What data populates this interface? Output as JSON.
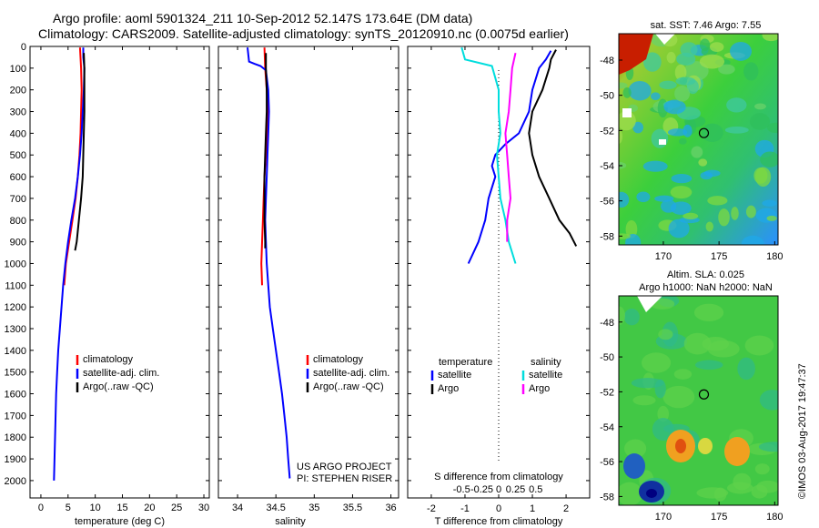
{
  "title": {
    "line1": "Argo profile: aoml 5901324_211 10-Sep-2012 52.147S 173.64E (DM data)",
    "line2": "Climatology: CARS2009. Satellite-adjusted climatology: synTS_20120910.nc (0.0075d earlier)"
  },
  "credit": "US ARGO PROJECT\nPI: STEPHEN RISER",
  "footer_stamp": "©IMOS 03-Aug-2017 19:47:37",
  "colors": {
    "climatology": "#ff0000",
    "satellite": "#0000ff",
    "argo": "#000000",
    "sal_satellite": "#00dddd",
    "sal_argo": "#ff00ff"
  },
  "chart_data": [
    {
      "id": "temperature-profile",
      "type": "line",
      "xlabel": "temperature (deg C)",
      "xlim": [
        -2,
        31
      ],
      "xticks": [
        0,
        5,
        10,
        15,
        20,
        25,
        30
      ],
      "ylim": [
        2080,
        0
      ],
      "yticks": [
        0,
        100,
        200,
        300,
        400,
        500,
        600,
        700,
        800,
        900,
        1000,
        1100,
        1200,
        1300,
        1400,
        1500,
        1600,
        1700,
        1800,
        1900,
        2000
      ],
      "legend": [
        "climatology",
        "satellite-adj. clim.",
        "Argo(..raw -QC)"
      ],
      "series": [
        {
          "name": "climatology",
          "color": "#ff0000",
          "points": [
            [
              7.2,
              5
            ],
            [
              7.4,
              100
            ],
            [
              7.5,
              200
            ],
            [
              7.4,
              300
            ],
            [
              7.3,
              400
            ],
            [
              7.1,
              500
            ],
            [
              6.8,
              600
            ],
            [
              6.4,
              700
            ],
            [
              5.8,
              800
            ],
            [
              5.2,
              900
            ],
            [
              4.6,
              1000
            ],
            [
              4.3,
              1100
            ]
          ]
        },
        {
          "name": "satellite-adj. clim.",
          "color": "#0000ff",
          "points": [
            [
              7.8,
              5
            ],
            [
              7.8,
              50
            ],
            [
              8.0,
              100
            ],
            [
              7.9,
              200
            ],
            [
              7.7,
              300
            ],
            [
              7.5,
              400
            ],
            [
              7.2,
              500
            ],
            [
              6.8,
              600
            ],
            [
              6.3,
              700
            ],
            [
              5.6,
              800
            ],
            [
              5.0,
              900
            ],
            [
              4.5,
              1000
            ],
            [
              4.1,
              1100
            ],
            [
              3.8,
              1200
            ],
            [
              3.5,
              1300
            ],
            [
              3.2,
              1400
            ],
            [
              3.0,
              1500
            ],
            [
              2.8,
              1600
            ],
            [
              2.7,
              1700
            ],
            [
              2.6,
              1800
            ],
            [
              2.5,
              1900
            ],
            [
              2.4,
              2000
            ]
          ]
        },
        {
          "name": "Argo(..raw -QC)",
          "color": "#000000",
          "points": [
            [
              7.9,
              30
            ],
            [
              8.0,
              100
            ],
            [
              8.0,
              200
            ],
            [
              8.0,
              300
            ],
            [
              7.9,
              400
            ],
            [
              7.8,
              500
            ],
            [
              7.7,
              600
            ],
            [
              7.4,
              700
            ],
            [
              7.0,
              800
            ],
            [
              6.6,
              900
            ],
            [
              6.3,
              940
            ]
          ]
        }
      ]
    },
    {
      "id": "salinity-profile",
      "type": "line",
      "xlabel": "salinity",
      "xlim": [
        33.75,
        36.1
      ],
      "xticks": [
        34,
        34.5,
        35,
        35.5,
        36
      ],
      "ylim": [
        2080,
        0
      ],
      "legend": [
        "climatology",
        "satellite-adj. clim.",
        "Argo(..raw -QC)"
      ],
      "series": [
        {
          "name": "climatology",
          "color": "#ff0000",
          "points": [
            [
              34.35,
              5
            ],
            [
              34.36,
              100
            ],
            [
              34.38,
              200
            ],
            [
              34.4,
              300
            ],
            [
              34.39,
              400
            ],
            [
              34.37,
              500
            ],
            [
              34.35,
              600
            ],
            [
              34.34,
              700
            ],
            [
              34.33,
              800
            ],
            [
              34.32,
              900
            ],
            [
              34.31,
              1000
            ],
            [
              34.32,
              1100
            ]
          ]
        },
        {
          "name": "satellite-adj. clim.",
          "color": "#0000ff",
          "points": [
            [
              34.13,
              5
            ],
            [
              34.15,
              70
            ],
            [
              34.22,
              80
            ],
            [
              34.3,
              90
            ],
            [
              34.37,
              110
            ],
            [
              34.4,
              200
            ],
            [
              34.41,
              300
            ],
            [
              34.4,
              400
            ],
            [
              34.39,
              500
            ],
            [
              34.38,
              600
            ],
            [
              34.37,
              700
            ],
            [
              34.36,
              800
            ],
            [
              34.37,
              900
            ],
            [
              34.38,
              1000
            ],
            [
              34.4,
              1100
            ],
            [
              34.42,
              1200
            ],
            [
              34.46,
              1300
            ],
            [
              34.5,
              1400
            ],
            [
              34.54,
              1500
            ],
            [
              34.58,
              1600
            ],
            [
              34.61,
              1700
            ],
            [
              34.64,
              1800
            ],
            [
              34.66,
              1900
            ],
            [
              34.68,
              1990
            ]
          ]
        },
        {
          "name": "Argo(..raw -QC)",
          "color": "#000000",
          "points": [
            [
              34.37,
              30
            ],
            [
              34.37,
              100
            ],
            [
              34.38,
              200
            ],
            [
              34.38,
              300
            ],
            [
              34.37,
              400
            ],
            [
              34.36,
              500
            ],
            [
              34.35,
              600
            ],
            [
              34.35,
              700
            ],
            [
              34.35,
              800
            ],
            [
              34.36,
              900
            ],
            [
              34.36,
              930
            ]
          ]
        }
      ]
    },
    {
      "id": "difference-profile",
      "type": "line",
      "xlabel": "T difference from climatology",
      "xlabel_top": "S difference from climatology",
      "xlim": [
        -2.7,
        2.7
      ],
      "xticks_T": [
        -2,
        -1,
        0,
        1,
        2
      ],
      "xticks_S": [
        "-0.5",
        "-0.25",
        "0",
        "0.25",
        "0.5"
      ],
      "ylim": [
        2080,
        0
      ],
      "legend_titles": [
        "temperature",
        "salinity"
      ],
      "legend": [
        "satellite",
        "Argo",
        "satellite",
        "Argo"
      ],
      "series": [
        {
          "name": "satellite",
          "color": "#0000ff",
          "points": [
            [
              1.55,
              20
            ],
            [
              1.4,
              60
            ],
            [
              1.2,
              100
            ],
            [
              1.0,
              200
            ],
            [
              0.9,
              300
            ],
            [
              0.6,
              400
            ],
            [
              0.2,
              450
            ],
            [
              -0.1,
              500
            ],
            [
              -0.2,
              550
            ],
            [
              -0.1,
              600
            ],
            [
              -0.3,
              700
            ],
            [
              -0.4,
              800
            ],
            [
              -0.6,
              900
            ],
            [
              -0.9,
              1000
            ]
          ]
        },
        {
          "name": "Argo",
          "color": "#000000",
          "points": [
            [
              1.7,
              15
            ],
            [
              1.55,
              60
            ],
            [
              1.5,
              100
            ],
            [
              1.3,
              200
            ],
            [
              1.0,
              300
            ],
            [
              0.9,
              400
            ],
            [
              1.0,
              500
            ],
            [
              1.2,
              600
            ],
            [
              1.5,
              700
            ],
            [
              1.8,
              800
            ],
            [
              2.1,
              860
            ],
            [
              2.3,
              920
            ]
          ]
        },
        {
          "name": "satellite",
          "color": "#00dddd",
          "points": [
            [
              -1.1,
              5
            ],
            [
              -1.0,
              60
            ],
            [
              -0.2,
              90
            ],
            [
              0.0,
              200
            ],
            [
              0.0,
              300
            ],
            [
              0.05,
              400
            ],
            [
              -0.05,
              500
            ],
            [
              0.0,
              600
            ],
            [
              0.05,
              700
            ],
            [
              0.2,
              800
            ],
            [
              0.3,
              900
            ],
            [
              0.5,
              1000
            ]
          ]
        },
        {
          "name": "Argo",
          "color": "#ff00ff",
          "points": [
            [
              0.5,
              30
            ],
            [
              0.4,
              100
            ],
            [
              0.35,
              200
            ],
            [
              0.3,
              300
            ],
            [
              0.2,
              400
            ],
            [
              0.25,
              500
            ],
            [
              0.3,
              600
            ],
            [
              0.35,
              700
            ],
            [
              0.25,
              800
            ],
            [
              0.25,
              900
            ]
          ]
        }
      ]
    },
    {
      "id": "sst-map",
      "type": "heatmap",
      "title": "sat. SST: 7.46 Argo: 7.55",
      "xlim": [
        166,
        180.3
      ],
      "ylim": [
        -58.5,
        -46.5
      ],
      "xticks": [
        170,
        175,
        180
      ],
      "yticks": [
        -48,
        -50,
        -52,
        -54,
        -56,
        -58
      ],
      "float_position": [
        173.64,
        -52.147
      ]
    },
    {
      "id": "sla-map",
      "type": "heatmap",
      "title": "Altim. SLA: 0.025\nArgo h1000: NaN h2000: NaN",
      "xlim": [
        166,
        180.3
      ],
      "ylim": [
        -58.5,
        -46.5
      ],
      "xticks": [
        170,
        175,
        180
      ],
      "yticks": [
        -48,
        -50,
        -52,
        -54,
        -56,
        -58
      ],
      "float_position": [
        173.64,
        -52.147
      ]
    }
  ]
}
